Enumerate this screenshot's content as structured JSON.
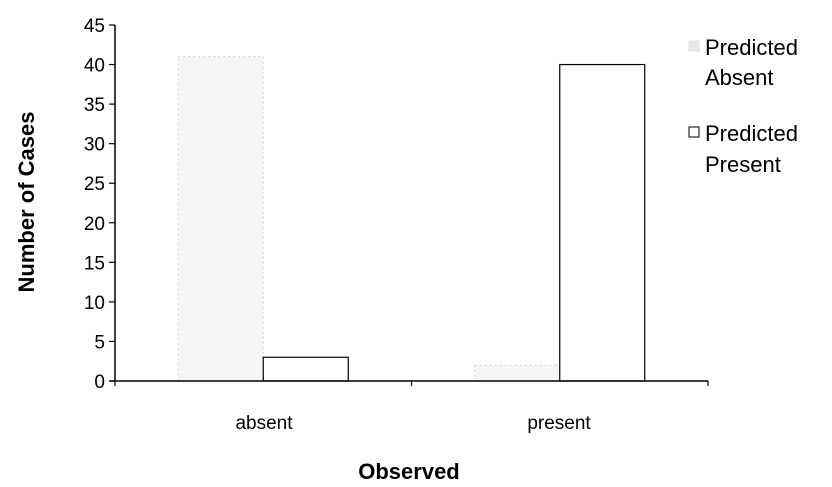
{
  "chart_data": {
    "type": "bar",
    "categories": [
      "absent",
      "present"
    ],
    "series": [
      {
        "name": "Predicted Absent",
        "values": [
          41,
          2
        ],
        "color": "#d8d8d8"
      },
      {
        "name": "Predicted Present",
        "values": [
          3,
          40
        ],
        "color": "#ffffff"
      }
    ],
    "xlabel": "Observed",
    "ylabel": "Number of Cases",
    "ylim": [
      0,
      45
    ],
    "yticks": [
      "0",
      "5",
      "10",
      "15",
      "20",
      "25",
      "30",
      "35",
      "40",
      "45"
    ],
    "grid": false,
    "legend": {
      "placement": "right",
      "entries": [
        {
          "line1": "Predicted",
          "line2": "Absent"
        },
        {
          "line1": "Predicted",
          "line2": "Present"
        }
      ]
    },
    "bar_outline_color": "#000000",
    "axis_color": "#000000"
  }
}
